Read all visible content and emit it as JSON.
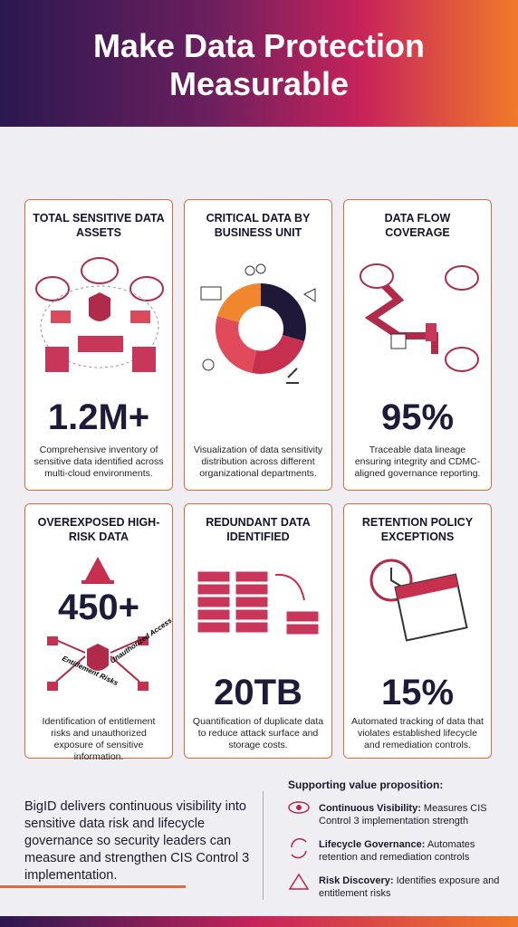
{
  "header": {
    "title": "Make Data Protection Measurable"
  },
  "cards": [
    {
      "title": "TOTAL SENSITIVE DATA ASSETS",
      "stat": "1.2M+",
      "description": "Comprehensive inventory of sensitive data identified across multi-cloud environments."
    },
    {
      "title": "CRITICAL DATA BY BUSINESS UNIT",
      "description": "Visualization of data sensitivity distribution across different organizational departments."
    },
    {
      "title": "DATA FLOW COVERAGE",
      "stat": "95%",
      "description": "Traceable data lineage ensuring integrity and CDMC-aligned governance reporting."
    },
    {
      "title": "OVEREXPOSED HIGH-RISK DATA",
      "stat": "450+",
      "labels": [
        "Entitlement Risks",
        "Unauthorized Access"
      ],
      "description": "Identification of entitlement risks and unauthorized exposure of sensitive information."
    },
    {
      "title": "REDUNDANT DATA IDENTIFIED",
      "stat": "20TB",
      "description": "Quantification of duplicate data to reduce attack surface and storage costs."
    },
    {
      "title": "RETENTION POLICY EXCEPTIONS",
      "stat": "15%",
      "description": "Automated tracking of data that violates established lifecycle and remediation controls."
    }
  ],
  "summary": "BigID delivers continuous visibility into sensitive data risk and lifecycle governance so security leaders can measure and strengthen CIS Control 3 implementation.",
  "value_proposition": {
    "heading": "Supporting value proposition:",
    "items": [
      {
        "label": "Continuous Visibility:",
        "text": "Measures CIS Control 3 implementation strength"
      },
      {
        "label": "Lifecycle Governance:",
        "text": "Automates retention and remediation controls"
      },
      {
        "label": "Risk Discovery:",
        "text": "Identifies exposure and entitlement risks"
      }
    ]
  }
}
